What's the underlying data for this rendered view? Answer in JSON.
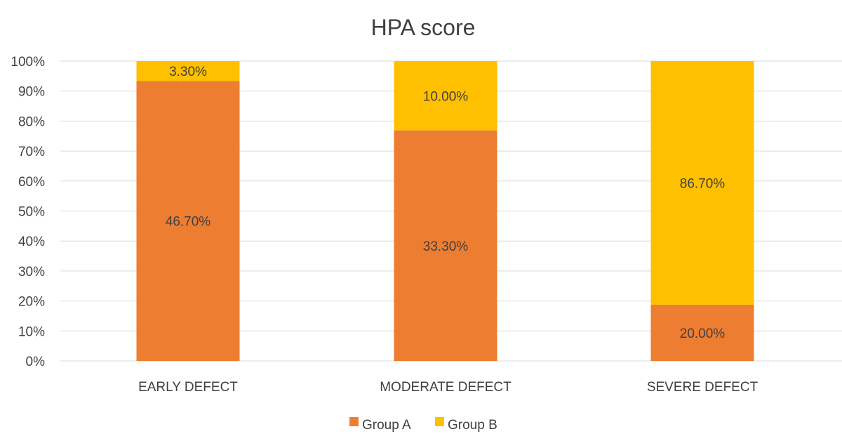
{
  "chart_data": {
    "type": "bar",
    "stacked": "percent",
    "title": "HPA score",
    "xlabel": "",
    "ylabel": "",
    "ylim": [
      0,
      100
    ],
    "y_ticks": [
      "0%",
      "10%",
      "20%",
      "30%",
      "40%",
      "50%",
      "60%",
      "70%",
      "80%",
      "90%",
      "100%"
    ],
    "categories": [
      "EARLY DEFECT",
      "MODERATE DEFECT",
      "SEVERE DEFECT"
    ],
    "series": [
      {
        "name": "Group A",
        "color": "#ED7D31",
        "values": [
          46.7,
          33.3,
          20.0
        ],
        "labels": [
          "46.70%",
          "33.30%",
          "20.00%"
        ]
      },
      {
        "name": "Group B",
        "color": "#FFC000",
        "values": [
          3.3,
          10.0,
          86.7
        ],
        "labels": [
          "3.30%",
          "10.00%",
          "86.70%"
        ]
      }
    ],
    "grid": true,
    "legend": "bottom"
  }
}
